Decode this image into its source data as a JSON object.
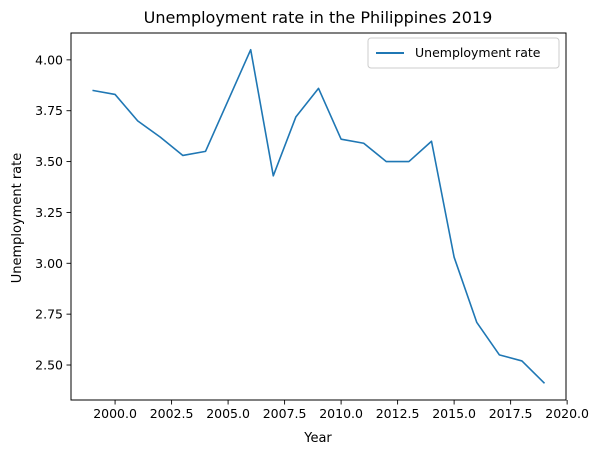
{
  "chart_data": {
    "type": "line",
    "title": "Unemployment rate in the Philippines 2019",
    "xlabel": "Year",
    "ylabel": "Unemployment rate",
    "xlim": [
      1998.05,
      2019.95
    ],
    "ylim": [
      2.328,
      4.132
    ],
    "xticks": [
      2000.0,
      2002.5,
      2005.0,
      2007.5,
      2010.0,
      2012.5,
      2015.0,
      2017.5,
      2020.0
    ],
    "xtick_labels": [
      "2000.0",
      "2002.5",
      "2005.0",
      "2007.5",
      "2010.0",
      "2012.5",
      "2015.0",
      "2017.5",
      "2020.0"
    ],
    "yticks": [
      2.5,
      2.75,
      3.0,
      3.25,
      3.5,
      3.75,
      4.0
    ],
    "ytick_labels": [
      "2.50",
      "2.75",
      "3.00",
      "3.25",
      "3.50",
      "3.75",
      "4.00"
    ],
    "legend_position": "top-right",
    "grid": false,
    "series": [
      {
        "name": "Unemployment rate",
        "color": "#1f77b4",
        "x": [
          1999,
          2000,
          2001,
          2002,
          2003,
          2004,
          2005,
          2006,
          2007,
          2008,
          2009,
          2010,
          2011,
          2012,
          2013,
          2014,
          2015,
          2016,
          2017,
          2018,
          2019
        ],
        "y": [
          3.85,
          3.83,
          3.7,
          3.62,
          3.53,
          3.55,
          3.8,
          4.05,
          3.43,
          3.72,
          3.86,
          3.61,
          3.59,
          3.5,
          3.5,
          3.6,
          3.03,
          2.71,
          2.55,
          2.52,
          2.41
        ]
      }
    ]
  }
}
